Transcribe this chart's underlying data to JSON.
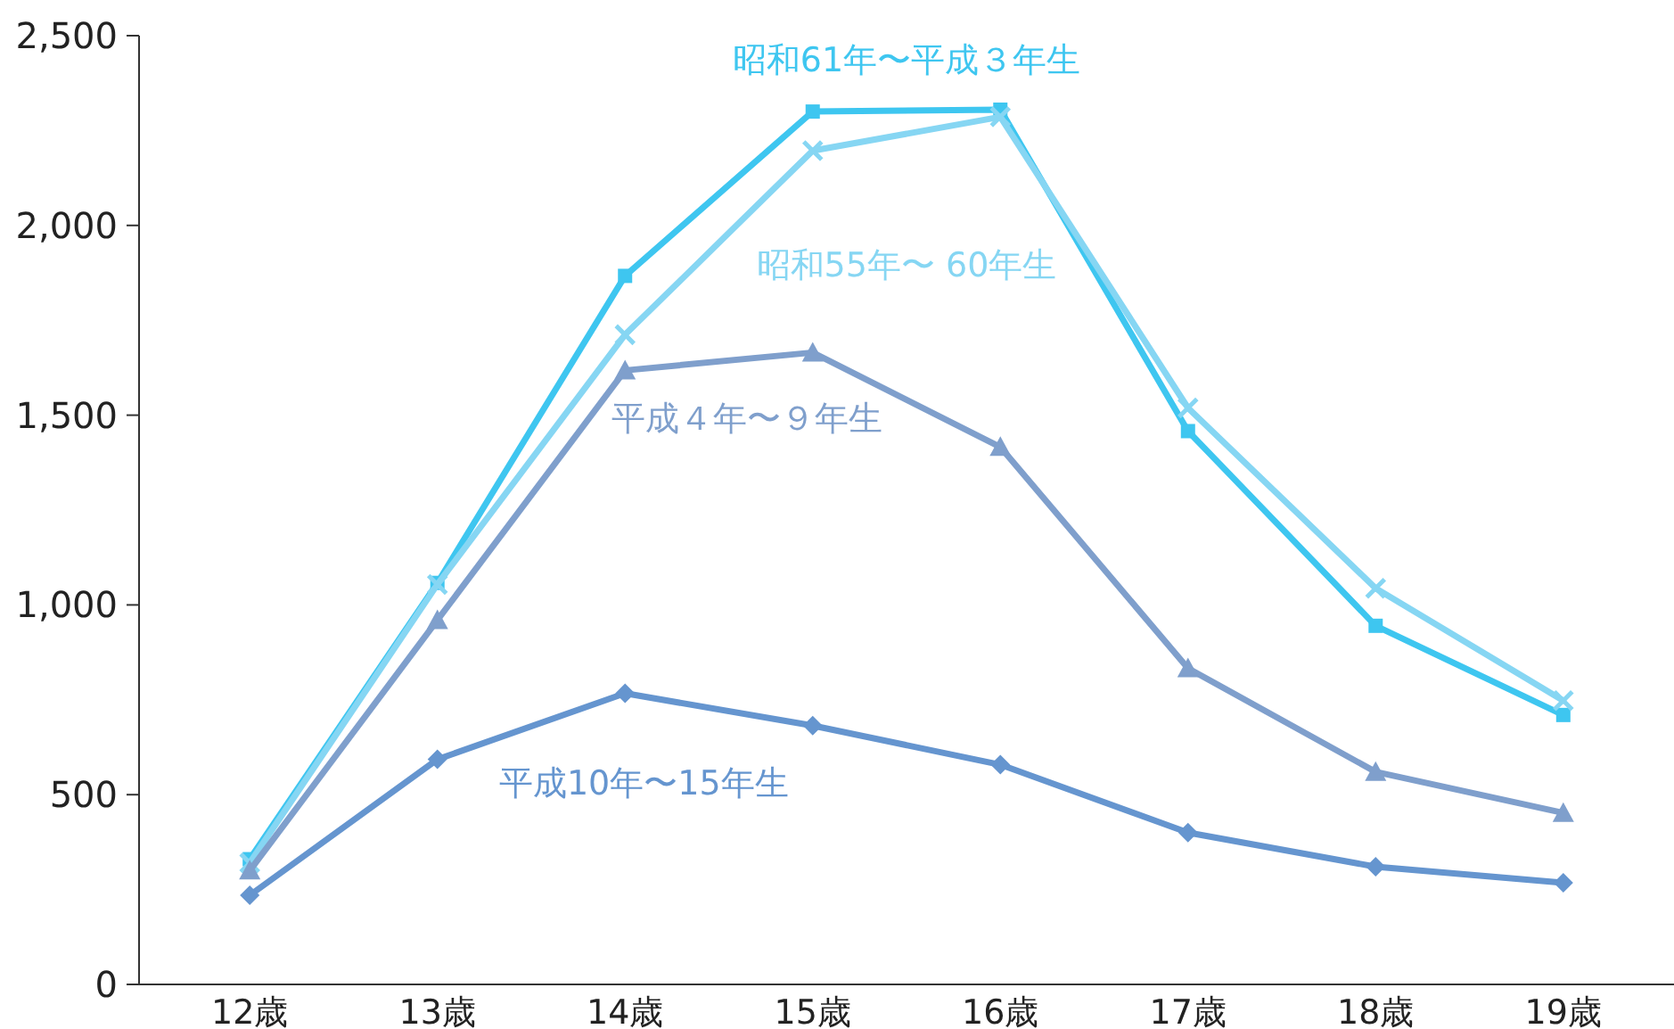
{
  "chart_data": {
    "type": "line",
    "categories": [
      "12歳",
      "13歳",
      "14歳",
      "15歳",
      "16歳",
      "17歳",
      "18歳",
      "19歳"
    ],
    "ylim": [
      0,
      2500
    ],
    "yticks": [
      {
        "value": 0,
        "label": "0"
      },
      {
        "value": 500,
        "label": "500"
      },
      {
        "value": 1000,
        "label": "1,000"
      },
      {
        "value": 1500,
        "label": "1,500"
      },
      {
        "value": 2000,
        "label": "2,000"
      },
      {
        "value": 2500,
        "label": "2,500"
      }
    ],
    "grid": false,
    "legend": false,
    "series": [
      {
        "name": "昭和61年〜平成３年生",
        "color": "#3ec6f0",
        "marker": "square",
        "values": [
          330,
          1058,
          1867,
          2300,
          2305,
          1458,
          945,
          710
        ]
      },
      {
        "name": "昭和55年〜 60年生",
        "color": "#86d6f3",
        "marker": "cross",
        "values": [
          320,
          1054,
          1712,
          2197,
          2286,
          1519,
          1044,
          748
        ]
      },
      {
        "name": "平成４年〜９年生",
        "color": "#7f9fcc",
        "marker": "triangle",
        "values": [
          300,
          960,
          1618,
          1665,
          1416,
          833,
          560,
          452
        ]
      },
      {
        "name": "平成10年〜15年生",
        "color": "#6595cf",
        "marker": "diamond",
        "values": [
          235,
          593,
          767,
          682,
          579,
          400,
          310,
          268
        ]
      }
    ]
  }
}
